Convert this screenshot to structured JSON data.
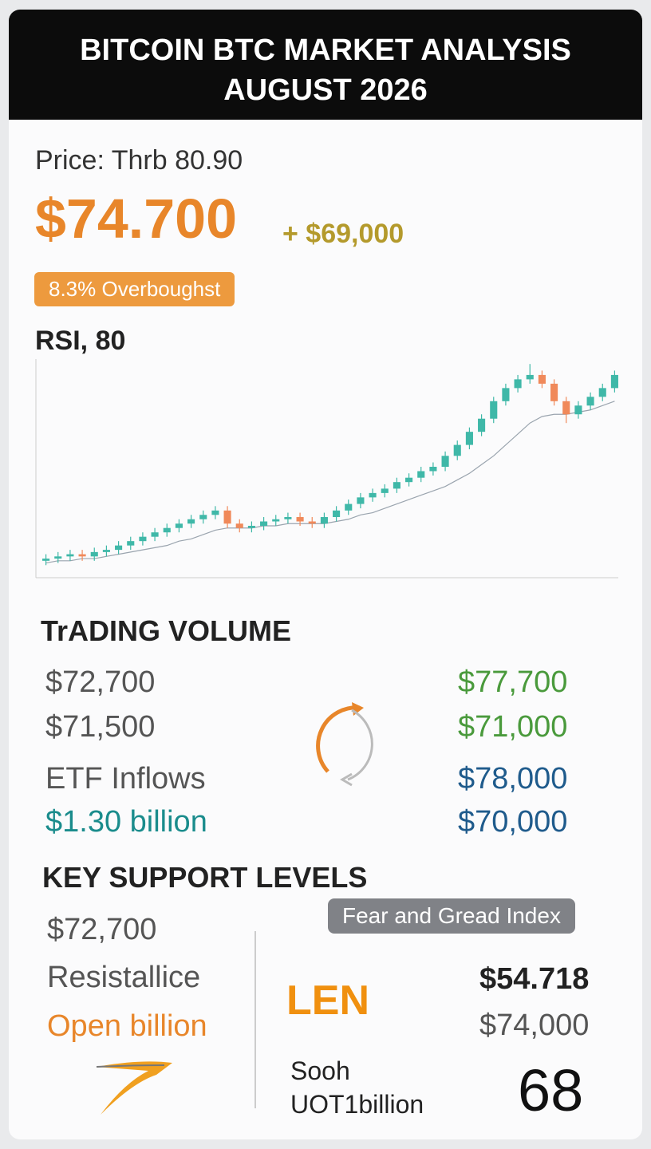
{
  "header": {
    "title_lines": [
      "BITCOIN BTC MARKET ANALYSIS",
      "AUGUST 2026"
    ]
  },
  "price": {
    "label": "Price: Thrb 80.90",
    "value": "$74.700",
    "change": "+ $69,000",
    "badge": "8.3% Overboughst"
  },
  "chart_data": {
    "type": "candlestick",
    "title": "RSI, 80",
    "ylim": [
      0,
      100
    ],
    "up_color": "#3fb8a8",
    "down_color": "#f0895a",
    "ma_color": "#9aa4ae",
    "open": [
      7,
      8,
      9,
      10,
      9,
      11,
      12,
      14,
      16,
      18,
      20,
      22,
      24,
      26,
      28,
      30,
      24,
      22,
      23,
      25,
      26,
      27,
      25,
      24,
      27,
      30,
      33,
      36,
      38,
      40,
      43,
      45,
      48,
      50,
      55,
      60,
      66,
      72,
      80,
      86,
      90,
      92,
      88,
      80,
      74,
      78,
      82,
      86
    ],
    "high": [
      10,
      11,
      12,
      12,
      13,
      14,
      16,
      18,
      20,
      22,
      24,
      26,
      28,
      30,
      32,
      32,
      26,
      25,
      27,
      28,
      29,
      29,
      27,
      29,
      32,
      35,
      38,
      40,
      42,
      45,
      47,
      50,
      52,
      57,
      62,
      68,
      74,
      82,
      88,
      92,
      97,
      94,
      90,
      82,
      80,
      84,
      88,
      94
    ],
    "low": [
      5,
      6,
      7,
      7,
      7,
      9,
      10,
      12,
      14,
      16,
      18,
      20,
      22,
      24,
      26,
      22,
      20,
      20,
      21,
      23,
      24,
      23,
      22,
      22,
      25,
      28,
      31,
      34,
      36,
      38,
      41,
      43,
      46,
      48,
      53,
      58,
      64,
      70,
      78,
      84,
      88,
      86,
      78,
      70,
      72,
      76,
      80,
      84
    ],
    "close": [
      8,
      9,
      10,
      9,
      11,
      12,
      14,
      16,
      18,
      20,
      22,
      24,
      26,
      28,
      30,
      24,
      22,
      23,
      25,
      26,
      27,
      25,
      24,
      27,
      30,
      33,
      36,
      38,
      40,
      43,
      45,
      48,
      50,
      55,
      60,
      66,
      72,
      80,
      86,
      90,
      92,
      88,
      80,
      74,
      78,
      82,
      86,
      92
    ],
    "ma": [
      6,
      7,
      7,
      8,
      8,
      9,
      10,
      11,
      12,
      13,
      14,
      16,
      17,
      19,
      21,
      22,
      22,
      22,
      23,
      23,
      24,
      24,
      24,
      24,
      25,
      26,
      28,
      29,
      31,
      33,
      35,
      37,
      39,
      41,
      44,
      47,
      51,
      55,
      60,
      65,
      70,
      73,
      74,
      74,
      75,
      76,
      78,
      80
    ]
  },
  "volume": {
    "title": "TrADING VOLUME",
    "left": [
      "$72,700",
      "$71,500"
    ],
    "right": [
      "$77,700",
      "$71,000"
    ],
    "etf_label": "ETF Inflows",
    "etf_value": "$1.30 billion",
    "right2": [
      "$78,000",
      "$70,000"
    ]
  },
  "support": {
    "title": "KEY SUPPORT LEVELS",
    "left": [
      "$72,700",
      "Resistallice",
      "Open billion"
    ],
    "badge": "Fear and Gread Index",
    "logo": "LEN",
    "values": [
      "$54.718",
      "$74,000"
    ],
    "notes": [
      "Sooh",
      "UOT1billion"
    ],
    "index": "68"
  }
}
